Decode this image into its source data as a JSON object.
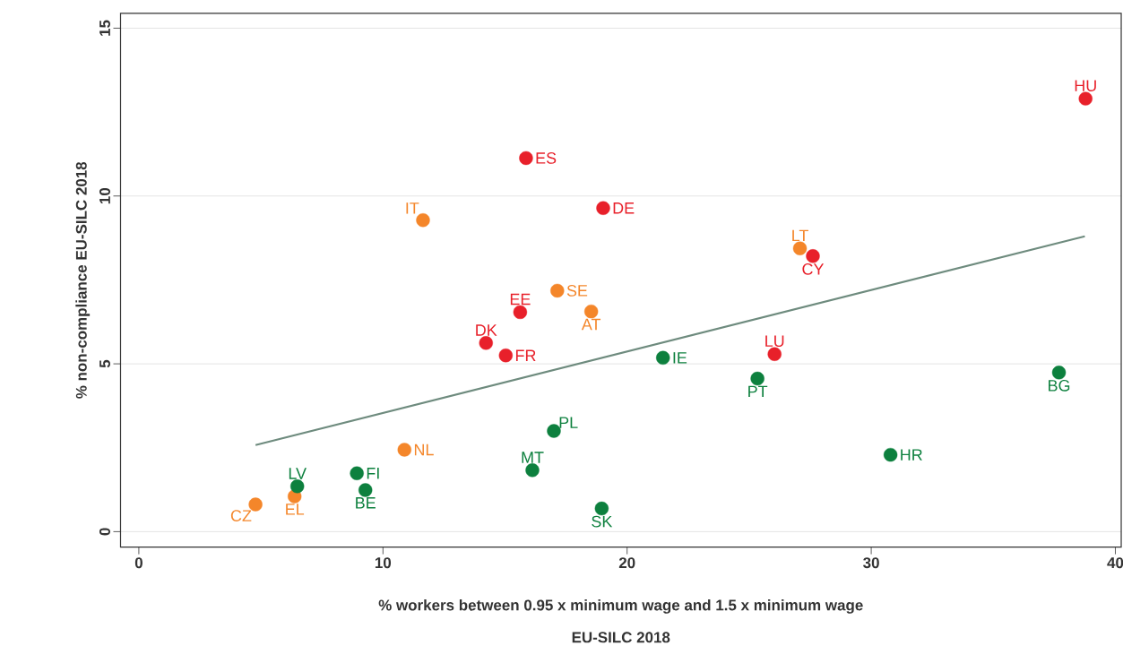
{
  "chart_data": {
    "type": "scatter",
    "xlabel": "% workers between 0.95 x minimum wage and 1.5 x minimum wage EU-SILC 2018",
    "ylabel": "% non-compliance EU-SILC 2018",
    "xlim": [
      -0.75,
      40.24
    ],
    "ylim": [
      -0.46,
      15.44
    ],
    "xticks": [
      0,
      10,
      20,
      30,
      40
    ],
    "yticks": [
      0,
      5,
      10,
      15
    ],
    "grid": "y",
    "series": [
      {
        "marker": "circle",
        "color": "#e8202a",
        "x": [
          38.78,
          15.86,
          19.02,
          27.61,
          15.62,
          14.22,
          15.03,
          26.04
        ],
        "values": [
          12.9,
          11.13,
          9.64,
          8.21,
          6.54,
          5.62,
          5.25,
          5.29
        ]
      },
      {
        "marker": "circle",
        "color": "#f4862a",
        "x": [
          11.64,
          27.08,
          17.14,
          18.53,
          10.88,
          6.38,
          4.78
        ],
        "values": [
          9.28,
          8.44,
          7.18,
          6.56,
          2.44,
          1.05,
          0.81
        ]
      },
      {
        "marker": "circle",
        "color": "#0d803e",
        "x": [
          21.47,
          25.34,
          37.69,
          17.0,
          30.79,
          16.12,
          8.93,
          6.49,
          9.28,
          18.96
        ],
        "values": [
          5.18,
          4.56,
          4.74,
          3.0,
          2.29,
          1.83,
          1.74,
          1.35,
          1.24,
          0.69
        ]
      },
      {
        "type": "line",
        "marker": "none",
        "color": "#6e8b7e",
        "x": [
          4.78,
          38.75
        ],
        "values": [
          2.58,
          8.8
        ]
      }
    ],
    "annotations": [
      {
        "text": "HU",
        "x": 38.78,
        "y": 12.9
      },
      {
        "text": "ES",
        "x": 15.86,
        "y": 11.13
      },
      {
        "text": "DE",
        "x": 19.02,
        "y": 9.64
      },
      {
        "text": "CY",
        "x": 27.61,
        "y": 8.21
      },
      {
        "text": "EE",
        "x": 15.62,
        "y": 6.54
      },
      {
        "text": "DK",
        "x": 14.22,
        "y": 5.62
      },
      {
        "text": "FR",
        "x": 15.03,
        "y": 5.25
      },
      {
        "text": "LU",
        "x": 26.04,
        "y": 5.29
      },
      {
        "text": "IT",
        "x": 11.64,
        "y": 9.28
      },
      {
        "text": "LT",
        "x": 27.08,
        "y": 8.44
      },
      {
        "text": "SE",
        "x": 17.14,
        "y": 7.18
      },
      {
        "text": "AT",
        "x": 18.53,
        "y": 6.56
      },
      {
        "text": "NL",
        "x": 10.88,
        "y": 2.44
      },
      {
        "text": "EL",
        "x": 6.38,
        "y": 1.05
      },
      {
        "text": "CZ",
        "x": 4.78,
        "y": 0.81
      },
      {
        "text": "IE",
        "x": 21.47,
        "y": 5.18
      },
      {
        "text": "PT",
        "x": 25.34,
        "y": 4.56
      },
      {
        "text": "BG",
        "x": 37.69,
        "y": 4.74
      },
      {
        "text": "PL",
        "x": 17.0,
        "y": 3.0
      },
      {
        "text": "HR",
        "x": 30.79,
        "y": 2.29
      },
      {
        "text": "MT",
        "x": 16.12,
        "y": 1.83
      },
      {
        "text": "FI",
        "x": 8.93,
        "y": 1.74
      },
      {
        "text": "LV",
        "x": 6.49,
        "y": 1.35
      },
      {
        "text": "BE",
        "x": 9.28,
        "y": 1.24
      },
      {
        "text": "SK",
        "x": 18.96,
        "y": 0.69
      }
    ]
  }
}
